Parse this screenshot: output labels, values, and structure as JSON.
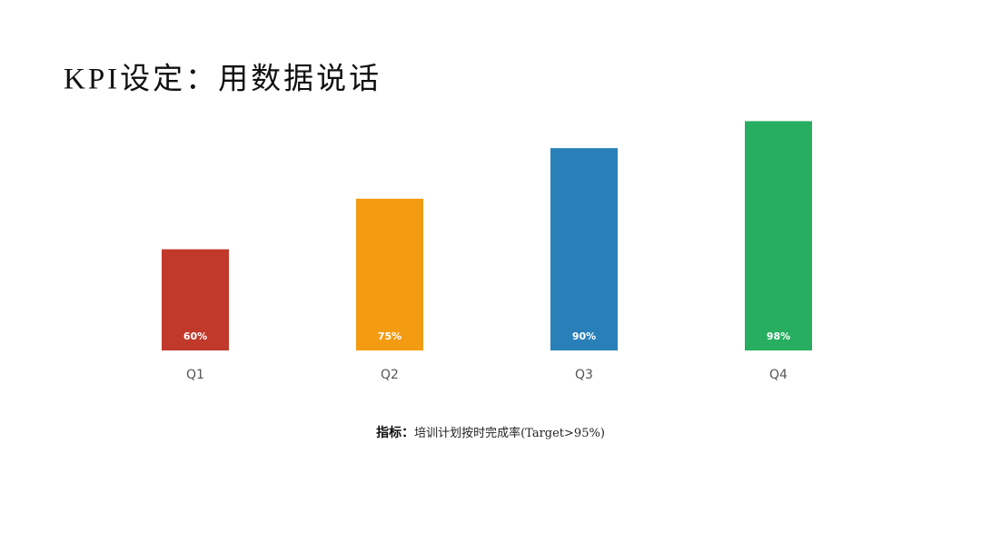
{
  "chart_data": {
    "type": "bar",
    "title": "KPI设定：用数据说话",
    "caption_label": "指标：",
    "caption": "培训计划按时完成率(Target>95%)",
    "categories": [
      "Q1",
      "Q2",
      "Q3",
      "Q4"
    ],
    "values": [
      60,
      75,
      90,
      98
    ],
    "value_labels": [
      "60%",
      "75%",
      "90%",
      "98%"
    ],
    "colors": [
      "#c0392b",
      "#f39c12",
      "#2980b9",
      "#27ae60"
    ],
    "ylim": [
      30,
      100
    ]
  }
}
